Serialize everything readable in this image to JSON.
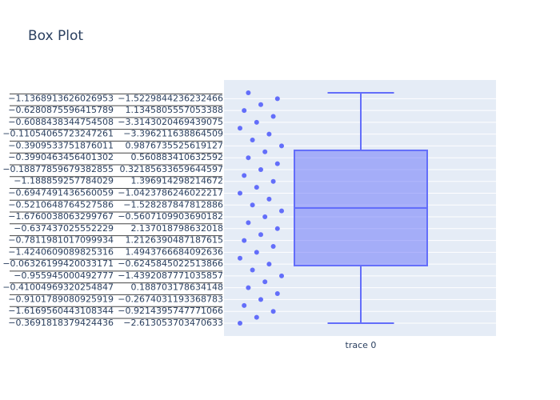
{
  "chart_data": {
    "type": "box",
    "title": "Box Plot",
    "categories": [
      [
        "−0.3691818379424436",
        "−2.613053703470633"
      ],
      null,
      [
        "−1.6169560443108344",
        "−0.9214395747771066"
      ],
      null,
      [
        "−0.9101789080925919",
        "−0.2674031193368783"
      ],
      null,
      [
        "−0.41004969320254847",
        "0.188703178634148"
      ],
      null,
      [
        "−0.955945000492777",
        "−1.4392087771035857"
      ],
      null,
      [
        "−0.06326199420033171",
        "−0.6245845022513866"
      ],
      null,
      [
        "−1.4240609089825316",
        "1.4943766684092636"
      ],
      null,
      [
        "−0.7811981017099934",
        "1.2126390487187615"
      ],
      null,
      [
        "−0.637437025552229",
        "2.137018798632018"
      ],
      null,
      [
        "−1.6760038063299767",
        "−0.5607109903690182"
      ],
      null,
      [
        "−0.5210648764527586",
        "−1.528287847812886"
      ],
      null,
      [
        "−0.6947491436560059",
        "−1.0423786246022217"
      ],
      null,
      [
        "−1.188859257784029",
        "1.396914298214672"
      ],
      null,
      [
        "−0.18877859679382855",
        "0.32185633659644597"
      ],
      null,
      [
        "−0.3990463456401302",
        "0.560883410632592"
      ],
      null,
      [
        "−0.3909533751876011",
        "0.9876735525619127"
      ],
      null,
      [
        "−0.11054065723247261",
        "−3.396211638864509"
      ],
      null,
      [
        "−0.6088438344754508",
        "−3.3143020469439075"
      ],
      null,
      [
        "−0.6280875596415789",
        "1.1345805557053388"
      ],
      null,
      [
        "−1.1368913626026953",
        "−1.5229844236232466"
      ],
      null
    ],
    "ylim": [
      -2.17,
      41.16
    ],
    "x_categories": [
      "trace 0"
    ],
    "color": "#636efa",
    "box": {
      "min": 0,
      "q1": 9.75,
      "median": 19.5,
      "q3": 29.25,
      "max": 39
    },
    "points": [
      0,
      1,
      2,
      3,
      4,
      5,
      6,
      7,
      8,
      9,
      10,
      11,
      12,
      13,
      14,
      15,
      16,
      17,
      18,
      19,
      20,
      21,
      22,
      23,
      24,
      25,
      26,
      27,
      28,
      29,
      30,
      31,
      32,
      33,
      34,
      35,
      36,
      37,
      38,
      39
    ],
    "grid": true
  }
}
